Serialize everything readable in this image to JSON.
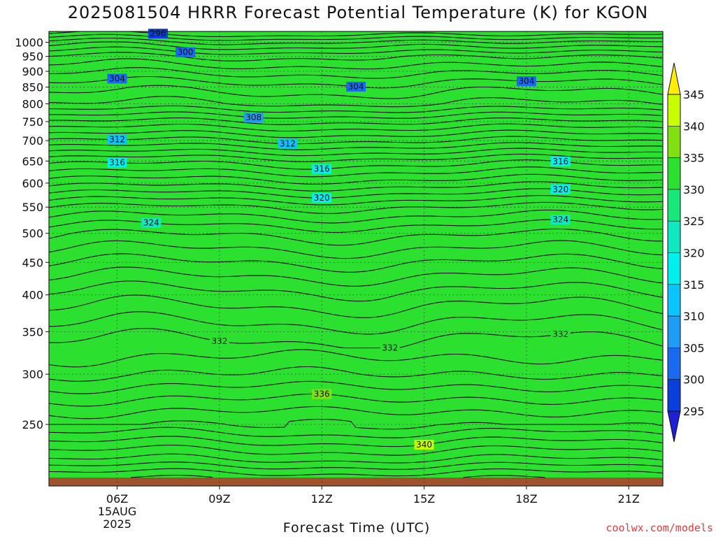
{
  "title": "2025081504 HRRR Forecast Potential Temperature (K) for KGON",
  "credit": "coolwx.com/models",
  "chart_data": {
    "type": "heatmap",
    "title": "2025081504 HRRR Forecast Potential Temperature (K) for KGON",
    "xlabel": "Forecast Time (UTC)",
    "ylabel": "",
    "x_range_hours": [
      4,
      22
    ],
    "y_range_hpa": [
      1040,
      200
    ],
    "y_scale": "log",
    "x_ticks": [
      {
        "hour": 6,
        "label": "06Z",
        "sub": [
          "15AUG",
          "2025"
        ]
      },
      {
        "hour": 9,
        "label": "09Z",
        "sub": []
      },
      {
        "hour": 12,
        "label": "12Z",
        "sub": []
      },
      {
        "hour": 15,
        "label": "15Z",
        "sub": []
      },
      {
        "hour": 18,
        "label": "18Z",
        "sub": []
      },
      {
        "hour": 21,
        "label": "21Z",
        "sub": []
      }
    ],
    "y_ticks": [
      250,
      300,
      350,
      400,
      450,
      500,
      550,
      600,
      650,
      700,
      750,
      800,
      850,
      900,
      950,
      1000
    ],
    "colorbar": {
      "levels": [
        295,
        300,
        305,
        310,
        315,
        320,
        325,
        330,
        335,
        340,
        345
      ],
      "colors": [
        "#1f1fd6",
        "#0a3fdc",
        "#1a6af0",
        "#1f9cf6",
        "#0bc3ff",
        "#00f0f0",
        "#0fe8c0",
        "#19e878",
        "#2ce030",
        "#80e010",
        "#c8ff00",
        "#ffee00"
      ],
      "extend": "both"
    },
    "contours": [
      {
        "level": 296,
        "labels": [
          {
            "hour": 7.2,
            "label": "296"
          }
        ]
      },
      {
        "level": 300,
        "labels": [
          {
            "hour": 8.0,
            "label": "300"
          }
        ]
      },
      {
        "level": 304,
        "labels": [
          {
            "hour": 6.0,
            "label": "304"
          },
          {
            "hour": 13.0,
            "label": "304"
          },
          {
            "hour": 18.0,
            "label": "304"
          }
        ]
      },
      {
        "level": 308,
        "labels": [
          {
            "hour": 10.0,
            "label": "308"
          }
        ]
      },
      {
        "level": 312,
        "labels": [
          {
            "hour": 6.0,
            "label": "312"
          },
          {
            "hour": 11.0,
            "label": "312"
          }
        ]
      },
      {
        "level": 316,
        "labels": [
          {
            "hour": 6.0,
            "label": "316"
          },
          {
            "hour": 12.0,
            "label": "316"
          },
          {
            "hour": 19.0,
            "label": "316"
          }
        ]
      },
      {
        "level": 320,
        "labels": [
          {
            "hour": 12.0,
            "label": "320"
          },
          {
            "hour": 19.0,
            "label": "320"
          }
        ]
      },
      {
        "level": 324,
        "labels": [
          {
            "hour": 7.0,
            "label": "324"
          },
          {
            "hour": 19.0,
            "label": "324"
          }
        ]
      },
      {
        "level": 332,
        "labels": [
          {
            "hour": 9.0,
            "label": "332"
          },
          {
            "hour": 14.0,
            "label": "332"
          },
          {
            "hour": 19.0,
            "label": "332"
          }
        ]
      },
      {
        "level": 336,
        "labels": [
          {
            "hour": 12.0,
            "label": "336"
          }
        ]
      },
      {
        "level": 340,
        "labels": [
          {
            "hour": 15.0,
            "label": "340"
          }
        ]
      }
    ],
    "grid": true,
    "ground_color": "#a0522d"
  }
}
